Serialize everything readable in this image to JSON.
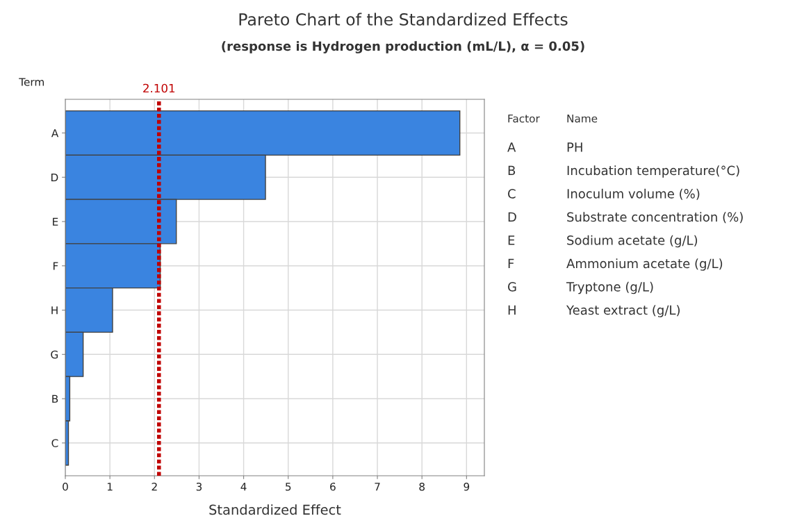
{
  "chart_data": {
    "type": "bar",
    "orientation": "horizontal",
    "title": "Pareto Chart of the Standardized Effects",
    "subtitle": "(response is Hydrogen production (mL/L), α = 0.05)",
    "xlabel": "Standardized Effect",
    "ylabel": "Term",
    "categories": [
      "A",
      "D",
      "E",
      "F",
      "H",
      "G",
      "B",
      "C"
    ],
    "values": [
      8.85,
      4.49,
      2.49,
      2.13,
      1.06,
      0.4,
      0.1,
      0.07
    ],
    "color": "#3a84e0",
    "xlim": [
      0,
      9.4
    ],
    "xticks": [
      0,
      1,
      2,
      3,
      4,
      5,
      6,
      7,
      8,
      9
    ],
    "grid": true,
    "ref_lines": [
      {
        "axis": "x",
        "value": 2.101,
        "label": "2.101",
        "color": "#c00000",
        "line_style": "dotted"
      }
    ],
    "annotations": [
      "Factor",
      "Name",
      "A",
      "PH",
      "B",
      "Incubation temperature(°C)",
      "C",
      "Inoculum volume (%)",
      "D",
      "Substrate concentration (%)",
      "E",
      "Sodium acetate (g/L)",
      "F",
      "Ammonium acetate (g/L)",
      "G",
      "Tryptone (g/L)",
      "H",
      "Yeast extract (g/L)"
    ]
  }
}
